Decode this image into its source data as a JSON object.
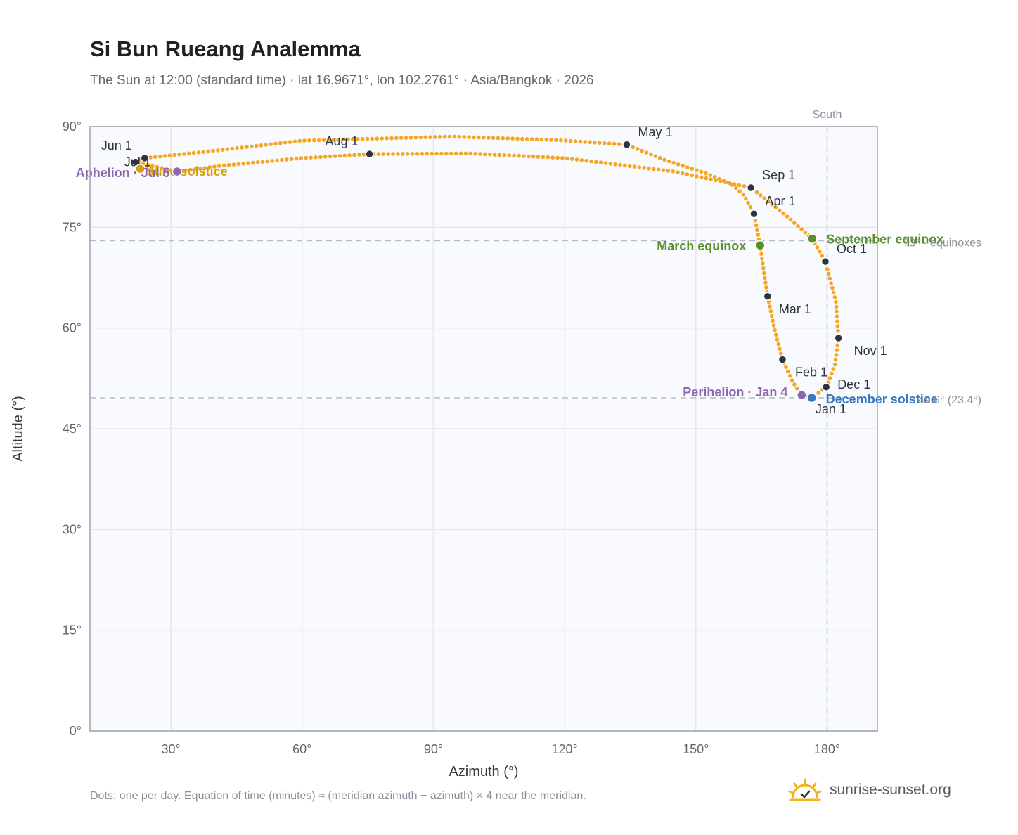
{
  "header": {
    "title": "Si Bun Rueang Analemma",
    "subtitle": "The Sun at 12:00 (standard time) · lat 16.9671°, lon 102.2761° · Asia/Bangkok · 2026"
  },
  "footer": {
    "note": "Dots: one per day. Equation of time (minutes) ≈ (meridian azimuth − azimuth) × 4 near the meridian.",
    "brand": "sunrise-sunset.org"
  },
  "colors": {
    "path": "#f5a623",
    "month_marker": "#2b3440",
    "equinox": "#5a8f2e",
    "december_solstice": "#3a78c2",
    "june_solstice": "#d4a017",
    "apsis": "#8e67b3",
    "reference_line": "#b5bec8",
    "grid": "#e4e8ed",
    "plot_background": "#f8fafd",
    "logo": "#f0b323"
  },
  "chart_data": {
    "type": "scatter",
    "x_label": "Azimuth (°)",
    "y_label": "Altitude (°)",
    "x_range": [
      11.5,
      191.5
    ],
    "y_range": [
      0,
      90
    ],
    "x_ticks": [
      30,
      60,
      90,
      120,
      150,
      180
    ],
    "x_tick_labels": [
      "30°",
      "60°",
      "90°",
      "120°",
      "150°",
      "180°"
    ],
    "y_ticks": [
      0,
      15,
      30,
      45,
      60,
      75,
      90
    ],
    "y_tick_labels": [
      "0°",
      "15°",
      "30°",
      "45°",
      "60°",
      "75°",
      "90°"
    ],
    "grid": true,
    "daily_path": [
      {
        "date": "Jan 1",
        "az": 176.7,
        "alt": 49.6
      },
      {
        "date": "Jan 4",
        "az": 174.2,
        "alt": 50.0
      },
      {
        "date": "Jan 15",
        "az": 172.2,
        "alt": 51.9
      },
      {
        "date": "Feb 1",
        "az": 169.8,
        "alt": 55.3
      },
      {
        "date": "Feb 15",
        "az": 168.0,
        "alt": 59.8
      },
      {
        "date": "Mar 1",
        "az": 166.4,
        "alt": 64.7
      },
      {
        "date": "Mar 10",
        "az": 165.5,
        "alt": 68.6
      },
      {
        "date": "Mar 20",
        "az": 164.7,
        "alt": 72.3
      },
      {
        "date": "Apr 1",
        "az": 163.3,
        "alt": 77.0
      },
      {
        "date": "Apr 10",
        "az": 161.0,
        "alt": 79.8
      },
      {
        "date": "Apr 15",
        "az": 158.0,
        "alt": 81.5
      },
      {
        "date": "Apr 20",
        "az": 152.0,
        "alt": 83.1
      },
      {
        "date": "Apr 25",
        "az": 143.0,
        "alt": 85.0
      },
      {
        "date": "May 1",
        "az": 134.2,
        "alt": 87.3
      },
      {
        "date": "May 8",
        "az": 118.0,
        "alt": 88.0
      },
      {
        "date": "May 15",
        "az": 94.0,
        "alt": 88.5
      },
      {
        "date": "May 22",
        "az": 60.0,
        "alt": 87.9
      },
      {
        "date": "May 28",
        "az": 40.0,
        "alt": 86.4
      },
      {
        "date": "Jun 1",
        "az": 24.0,
        "alt": 85.3
      },
      {
        "date": "Jun 10",
        "az": 21.5,
        "alt": 84.5
      },
      {
        "date": "Jun 21",
        "az": 23.0,
        "alt": 83.7
      },
      {
        "date": "Jun 26",
        "az": 26.0,
        "alt": 83.3
      },
      {
        "date": "Jul 1",
        "az": 21.9,
        "alt": 84.7
      },
      {
        "date": "Jul 5",
        "az": 31.4,
        "alt": 83.3
      },
      {
        "date": "Jul 12",
        "az": 42.0,
        "alt": 84.2
      },
      {
        "date": "Jul 20",
        "az": 60.0,
        "alt": 85.3
      },
      {
        "date": "Aug 1",
        "az": 75.4,
        "alt": 85.9
      },
      {
        "date": "Aug 10",
        "az": 98.0,
        "alt": 86.0
      },
      {
        "date": "Aug 18",
        "az": 120.0,
        "alt": 85.3
      },
      {
        "date": "Aug 25",
        "az": 145.0,
        "alt": 83.3
      },
      {
        "date": "Sep 1",
        "az": 162.6,
        "alt": 80.9
      },
      {
        "date": "Sep 10",
        "az": 170.5,
        "alt": 76.8
      },
      {
        "date": "Sep 23",
        "az": 176.6,
        "alt": 73.3
      },
      {
        "date": "Oct 1",
        "az": 179.6,
        "alt": 69.9
      },
      {
        "date": "Oct 15",
        "az": 182.0,
        "alt": 64.0
      },
      {
        "date": "Nov 1",
        "az": 182.6,
        "alt": 58.5
      },
      {
        "date": "Nov 15",
        "az": 181.8,
        "alt": 54.5
      },
      {
        "date": "Dec 1",
        "az": 179.8,
        "alt": 51.2
      },
      {
        "date": "Dec 21",
        "az": 176.5,
        "alt": 49.6
      },
      {
        "date": "Dec 31",
        "az": 176.8,
        "alt": 49.6
      }
    ],
    "month_markers": [
      {
        "label": "Jan 1",
        "az": 176.7,
        "alt": 49.6
      },
      {
        "label": "Feb 1",
        "az": 169.8,
        "alt": 55.3
      },
      {
        "label": "Mar 1",
        "az": 166.4,
        "alt": 64.7
      },
      {
        "label": "Apr 1",
        "az": 163.3,
        "alt": 77.0
      },
      {
        "label": "May 1",
        "az": 134.2,
        "alt": 87.3
      },
      {
        "label": "Jun 1",
        "az": 24.0,
        "alt": 85.3
      },
      {
        "label": "Jul 1",
        "az": 21.9,
        "alt": 84.7
      },
      {
        "label": "Aug 1",
        "az": 75.4,
        "alt": 85.9
      },
      {
        "label": "Sep 1",
        "az": 162.6,
        "alt": 80.9
      },
      {
        "label": "Oct 1",
        "az": 179.6,
        "alt": 69.9
      },
      {
        "label": "Nov 1",
        "az": 182.6,
        "alt": 58.5
      },
      {
        "label": "Dec 1",
        "az": 179.8,
        "alt": 51.2
      }
    ],
    "events": [
      {
        "label": "March equinox",
        "az": 164.7,
        "alt": 72.3,
        "kind": "equinox"
      },
      {
        "label": "September equinox",
        "az": 176.6,
        "alt": 73.3,
        "kind": "equinox"
      },
      {
        "label": "June solstice",
        "az": 23.0,
        "alt": 83.7,
        "kind": "june_solstice"
      },
      {
        "label": "December solstice",
        "az": 176.5,
        "alt": 49.6,
        "kind": "december_solstice"
      },
      {
        "label": "Perihelion · Jan 4",
        "az": 174.2,
        "alt": 50.0,
        "kind": "apsis"
      },
      {
        "label": "Aphelion · Jul 5",
        "az": 31.4,
        "alt": 83.3,
        "kind": "apsis"
      }
    ],
    "reference_lines": [
      {
        "orientation": "horizontal",
        "value": 73.0,
        "label": "73° · equinoxes"
      },
      {
        "orientation": "horizontal",
        "value": 49.6,
        "label": "49.6° (23.4°)"
      },
      {
        "orientation": "vertical",
        "value": 180,
        "label": "South"
      }
    ]
  }
}
